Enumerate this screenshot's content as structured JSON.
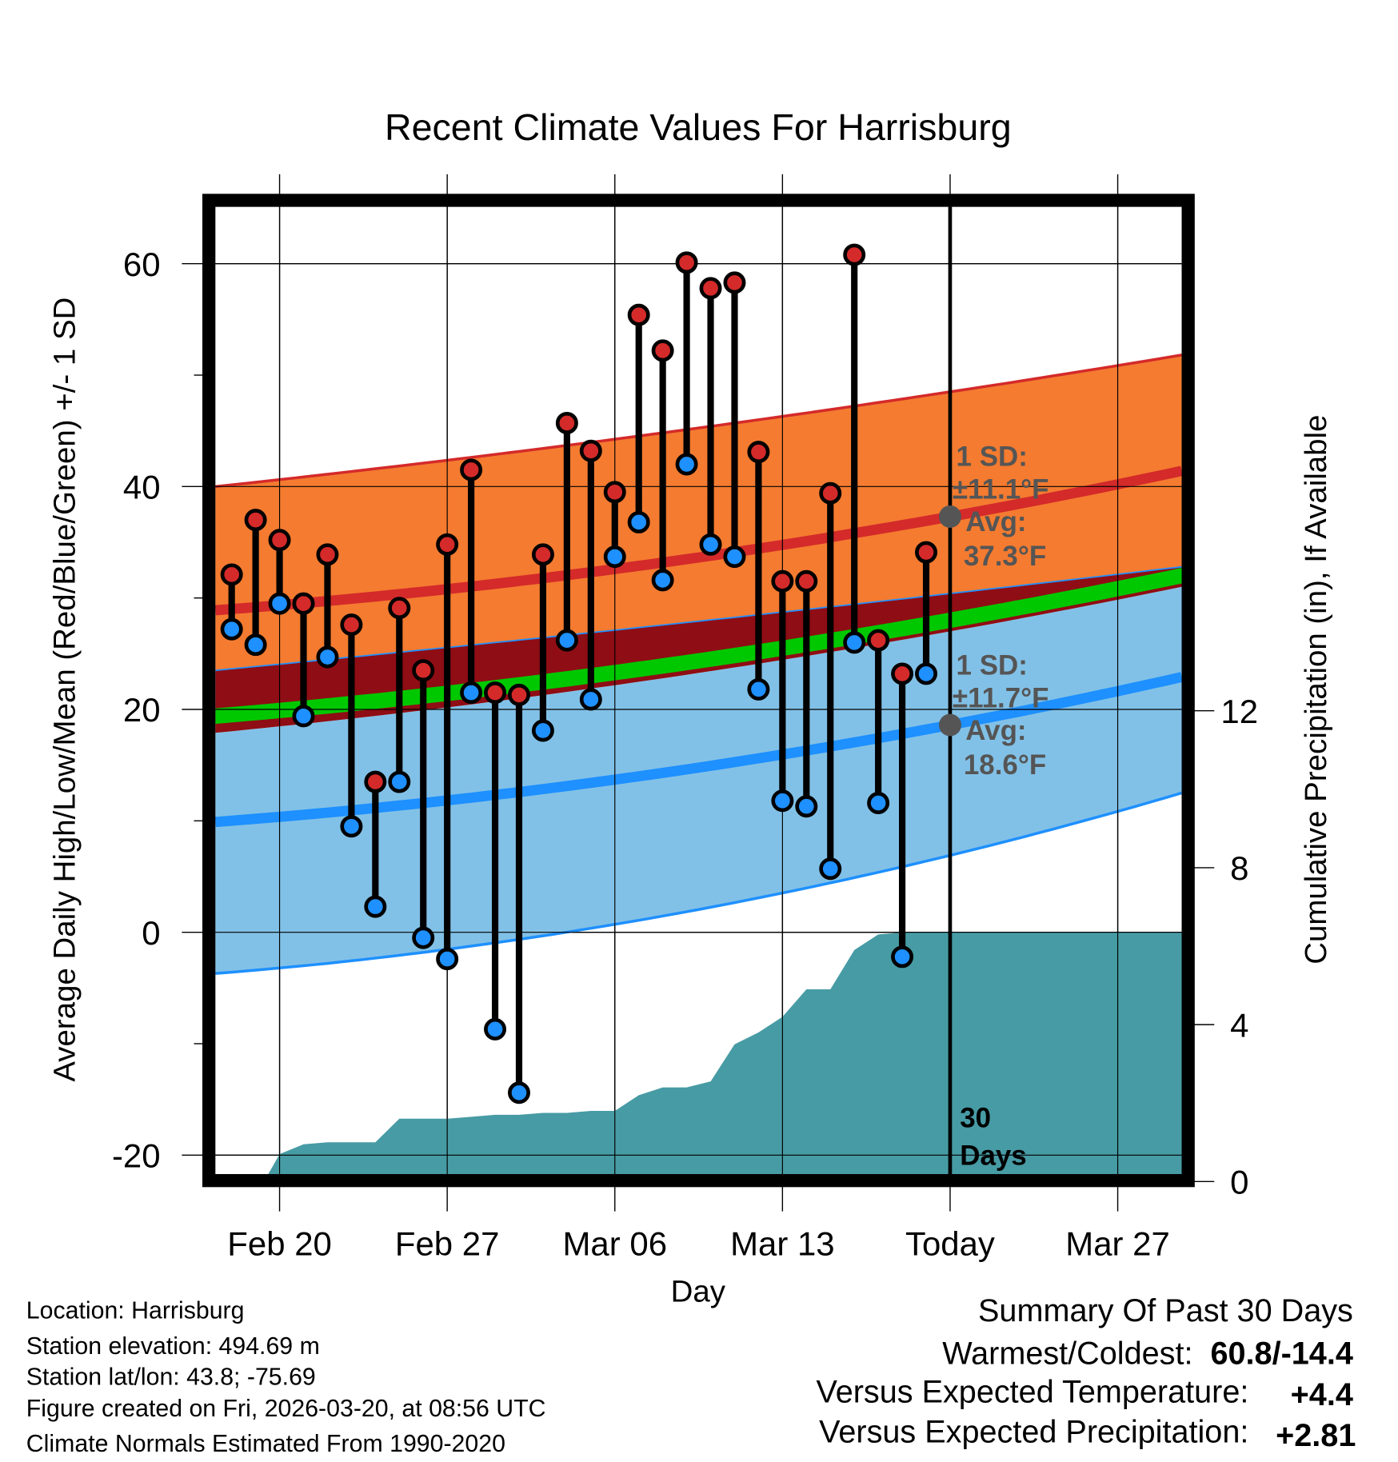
{
  "chart_data": {
    "type": "line",
    "title": "Recent Climate Values For Harrisburg",
    "xlabel": "Day",
    "ylabel": "Average Daily High/Low/Mean (Red/Blue/Green) +/- 1 SD",
    "ylabel_right": "Cumulative Precipitation (in), If Available",
    "ylim": [
      -21.7,
      65.1
    ],
    "ylim_right": [
      0,
      12
    ],
    "yticks": [
      "60",
      "40",
      "20",
      "0",
      "-20"
    ],
    "yticks_values": [
      60,
      40,
      20,
      0,
      -20
    ],
    "yticks_right": [
      "12",
      "8",
      "4",
      "0"
    ],
    "yticks_right_values": [
      12,
      8,
      4,
      0
    ],
    "xticks": [
      "Feb 20",
      "Feb 27",
      "Mar 06",
      "Mar 13",
      "Today",
      "Mar 27"
    ],
    "xticks_day_offsets": [
      0,
      7,
      14,
      21,
      28,
      35
    ],
    "xlim_day_offsets": [
      -2.68,
      37.67
    ],
    "grid": true,
    "days": [
      "Feb 18",
      "Feb 19",
      "Feb 20",
      "Feb 21",
      "Feb 22",
      "Feb 23",
      "Feb 24",
      "Feb 25",
      "Feb 26",
      "Feb 27",
      "Feb 28",
      "Mar 01",
      "Mar 02",
      "Mar 03",
      "Mar 04",
      "Mar 05",
      "Mar 06",
      "Mar 07",
      "Mar 08",
      "Mar 09",
      "Mar 10",
      "Mar 11",
      "Mar 12",
      "Mar 13",
      "Mar 14",
      "Mar 15",
      "Mar 16",
      "Mar 17",
      "Mar 18",
      "Mar 19"
    ],
    "first_day_offset": -2,
    "series": [
      {
        "name": "Daily High",
        "color": "#d42a2a",
        "values": [
          32.1,
          37.0,
          35.2,
          29.5,
          33.9,
          27.6,
          13.5,
          29.1,
          23.5,
          34.8,
          41.5,
          21.5,
          21.3,
          33.9,
          45.7,
          43.2,
          39.5,
          55.4,
          52.2,
          60.1,
          57.8,
          58.3,
          43.1,
          31.5,
          31.5,
          39.4,
          60.8,
          26.2,
          23.2,
          34.1
        ]
      },
      {
        "name": "Daily Low",
        "color": "#1e90ff",
        "values": [
          27.2,
          25.8,
          29.5,
          19.4,
          24.7,
          9.5,
          2.3,
          13.5,
          -0.5,
          -2.4,
          21.5,
          -8.7,
          -14.4,
          18.1,
          26.2,
          20.9,
          33.7,
          36.8,
          31.6,
          42.0,
          34.8,
          33.7,
          21.8,
          11.8,
          11.3,
          5.7,
          26.0,
          11.6,
          -2.2,
          23.2
        ]
      }
    ],
    "normals": {
      "day_offsets": [
        -2.68,
        28,
        37.67
      ],
      "high_mean": [
        28.9,
        37.3,
        41.4
      ],
      "high_upper": [
        40.0,
        48.5,
        51.8
      ],
      "high_lower": [
        23.5,
        30.4,
        32.8
      ],
      "low_mean": [
        9.9,
        18.6,
        22.9
      ],
      "low_upper": [
        17.9,
        27.0,
        31.0
      ],
      "low_lower": [
        -3.7,
        6.9,
        12.5
      ],
      "mean": [
        19.4,
        28.0,
        32.0
      ]
    },
    "precipitation": {
      "day_offsets": [
        -0.65,
        0,
        1,
        2,
        3,
        4,
        5,
        6,
        7,
        8,
        9,
        10,
        11,
        12,
        13,
        14,
        15,
        16,
        17,
        18,
        19,
        20,
        21,
        22,
        23,
        24,
        25,
        26,
        27,
        28,
        35,
        37.67
      ],
      "values": [
        0,
        0.7,
        0.95,
        1.0,
        1.0,
        1.0,
        1.6,
        1.6,
        1.6,
        1.65,
        1.7,
        1.7,
        1.75,
        1.75,
        1.8,
        1.8,
        2.2,
        2.4,
        2.4,
        2.55,
        3.5,
        3.8,
        4.2,
        4.9,
        4.9,
        5.9,
        6.3,
        6.35,
        6.35,
        6.35,
        6.35,
        6.35
      ]
    },
    "annotations": {
      "high_sd": "1 SD:",
      "high_sd_val": "±11.1°F",
      "high_avg": "Avg:",
      "high_avg_val": "37.3°F",
      "low_sd": "1 SD:",
      "low_sd_val": "±11.7°F",
      "low_avg": "Avg:",
      "low_avg_val": "18.6°F",
      "days_num": "30",
      "days_word": "Days",
      "high_avg_value": 37.3,
      "low_avg_value": 18.6
    },
    "colors": {
      "orange": "#f47b30",
      "maroon": "#8f0d14",
      "green": "#00c800",
      "lightblue": "#82c1e7",
      "blue": "#1e90ff",
      "red": "#d42a2a",
      "teal": "#479ba4"
    }
  },
  "footer": {
    "location": "Location: Harrisburg",
    "elevation": "Station elevation: 494.69 m",
    "latlon": "Station lat/lon: 43.8; -75.69",
    "created": "Figure created on Fri, 2026-03-20, at 08:56 UTC",
    "normals": "Climate Normals Estimated From 1990-2020"
  },
  "summary": {
    "title": "Summary Of Past 30 Days",
    "warm_label": "Warmest/Coldest:",
    "warm_value": "60.8/-14.4",
    "temp_label": "Versus Expected Temperature:",
    "temp_value": "+4.4",
    "precip_label": "Versus Expected Precipitation:",
    "precip_value": "+2.81",
    "temp_color": "#d42a2a",
    "precip_color": "#1ec81e"
  }
}
